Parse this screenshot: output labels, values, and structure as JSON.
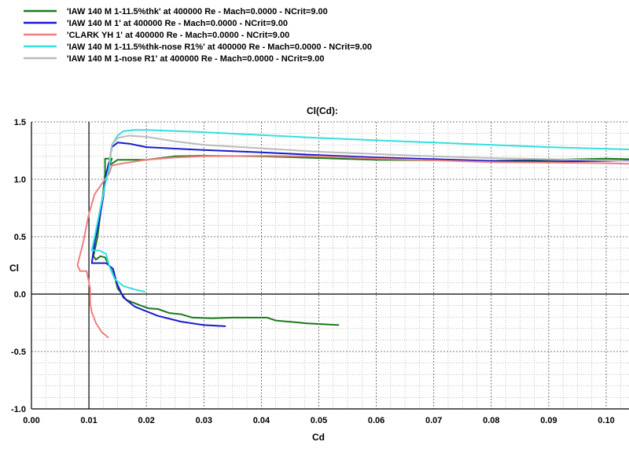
{
  "chart_data": {
    "type": "line",
    "title": "Cl(Cd):",
    "xlabel": "Cd",
    "ylabel": "Cl",
    "xlim": [
      0.0,
      0.1
    ],
    "ylim": [
      -1.0,
      1.5
    ],
    "x_ticks": [
      "0.00",
      "0.01",
      "0.02",
      "0.03",
      "0.04",
      "0.05",
      "0.06",
      "0.07",
      "0.08",
      "0.09",
      "0.10"
    ],
    "y_ticks": [
      "1.5",
      "1.0",
      "0.5",
      "0.0",
      "-0.5",
      "-1.0"
    ],
    "grid": true,
    "legend_position": "top-left",
    "series": [
      {
        "name": "'IAW 140 M 1-11.5%thk' at 400000 Re - Mach=0.0000 - NCrit=9.00",
        "color": "#1a7a1a",
        "points": [
          [
            0.0535,
            -0.27
          ],
          [
            0.048,
            -0.255
          ],
          [
            0.0425,
            -0.23
          ],
          [
            0.041,
            -0.205
          ],
          [
            0.035,
            -0.205
          ],
          [
            0.0315,
            -0.21
          ],
          [
            0.028,
            -0.205
          ],
          [
            0.026,
            -0.175
          ],
          [
            0.024,
            -0.165
          ],
          [
            0.022,
            -0.13
          ],
          [
            0.0205,
            -0.125
          ],
          [
            0.019,
            -0.1
          ],
          [
            0.0165,
            -0.05
          ],
          [
            0.015,
            0.05
          ],
          [
            0.0145,
            0.15
          ],
          [
            0.0135,
            0.25
          ],
          [
            0.0128,
            0.32
          ],
          [
            0.012,
            0.33
          ],
          [
            0.0112,
            0.3
          ],
          [
            0.0108,
            0.33
          ],
          [
            0.0115,
            0.5
          ],
          [
            0.012,
            0.7
          ],
          [
            0.0125,
            0.9
          ],
          [
            0.0128,
            1.05
          ],
          [
            0.0128,
            1.18
          ],
          [
            0.014,
            1.18
          ],
          [
            0.0135,
            1.12
          ],
          [
            0.015,
            1.17
          ],
          [
            0.02,
            1.17
          ],
          [
            0.025,
            1.2
          ],
          [
            0.03,
            1.205
          ],
          [
            0.04,
            1.2
          ],
          [
            0.05,
            1.185
          ],
          [
            0.06,
            1.17
          ],
          [
            0.07,
            1.165
          ],
          [
            0.08,
            1.16
          ],
          [
            0.09,
            1.17
          ],
          [
            0.1,
            1.18
          ],
          [
            0.104,
            1.175
          ]
        ]
      },
      {
        "name": "'IAW 140 M 1' at 400000 Re - Mach=0.0000 - NCrit=9.00",
        "color": "#1a1acc",
        "points": [
          [
            0.0338,
            -0.28
          ],
          [
            0.03,
            -0.27
          ],
          [
            0.026,
            -0.24
          ],
          [
            0.022,
            -0.19
          ],
          [
            0.018,
            -0.11
          ],
          [
            0.016,
            -0.03
          ],
          [
            0.0148,
            0.1
          ],
          [
            0.0142,
            0.22
          ],
          [
            0.013,
            0.27
          ],
          [
            0.0105,
            0.27
          ],
          [
            0.011,
            0.45
          ],
          [
            0.0118,
            0.65
          ],
          [
            0.0125,
            0.85
          ],
          [
            0.013,
            1.05
          ],
          [
            0.0135,
            1.15
          ],
          [
            0.014,
            1.28
          ],
          [
            0.015,
            1.32
          ],
          [
            0.017,
            1.31
          ],
          [
            0.02,
            1.28
          ],
          [
            0.03,
            1.255
          ],
          [
            0.04,
            1.235
          ],
          [
            0.05,
            1.21
          ],
          [
            0.06,
            1.19
          ],
          [
            0.07,
            1.175
          ],
          [
            0.08,
            1.16
          ],
          [
            0.09,
            1.155
          ],
          [
            0.1,
            1.16
          ],
          [
            0.104,
            1.165
          ]
        ]
      },
      {
        "name": "'CLARK YH 1' at 400000 Re - Mach=0.0000 - NCrit=9.00",
        "color": "#f08080",
        "points": [
          [
            0.0134,
            -0.38
          ],
          [
            0.0122,
            -0.33
          ],
          [
            0.0112,
            -0.25
          ],
          [
            0.0105,
            -0.16
          ],
          [
            0.0102,
            -0.07
          ],
          [
            0.0102,
            0.05
          ],
          [
            0.0096,
            0.2
          ],
          [
            0.0085,
            0.2
          ],
          [
            0.008,
            0.25
          ],
          [
            0.009,
            0.45
          ],
          [
            0.01,
            0.7
          ],
          [
            0.011,
            0.87
          ],
          [
            0.0125,
            0.98
          ],
          [
            0.0135,
            1.05
          ],
          [
            0.014,
            1.12
          ],
          [
            0.016,
            1.14
          ],
          [
            0.02,
            1.17
          ],
          [
            0.025,
            1.19
          ],
          [
            0.03,
            1.2
          ],
          [
            0.04,
            1.205
          ],
          [
            0.05,
            1.2
          ],
          [
            0.06,
            1.18
          ],
          [
            0.07,
            1.165
          ],
          [
            0.08,
            1.15
          ],
          [
            0.09,
            1.145
          ],
          [
            0.1,
            1.14
          ],
          [
            0.104,
            1.135
          ]
        ]
      },
      {
        "name": "'IAW 140 M 1-11.5%thk-nose R1%' at 400000 Re - Mach=0.0000 - NCrit=9.00",
        "color": "#33e0e0",
        "points": [
          [
            0.0198,
            0.02
          ],
          [
            0.018,
            0.04
          ],
          [
            0.016,
            0.07
          ],
          [
            0.0145,
            0.13
          ],
          [
            0.0135,
            0.25
          ],
          [
            0.013,
            0.35
          ],
          [
            0.0118,
            0.38
          ],
          [
            0.0105,
            0.38
          ],
          [
            0.0112,
            0.55
          ],
          [
            0.012,
            0.75
          ],
          [
            0.0128,
            0.95
          ],
          [
            0.0135,
            1.1
          ],
          [
            0.014,
            1.3
          ],
          [
            0.015,
            1.38
          ],
          [
            0.016,
            1.42
          ],
          [
            0.018,
            1.43
          ],
          [
            0.02,
            1.43
          ],
          [
            0.03,
            1.41
          ],
          [
            0.04,
            1.385
          ],
          [
            0.05,
            1.36
          ],
          [
            0.06,
            1.34
          ],
          [
            0.07,
            1.32
          ],
          [
            0.08,
            1.3
          ],
          [
            0.09,
            1.28
          ],
          [
            0.1,
            1.265
          ],
          [
            0.104,
            1.26
          ]
        ]
      },
      {
        "name": "'IAW 140 M 1-nose R1' at 400000 Re - Mach=0.0000 - NCrit=9.00",
        "color": "#bbbbbb",
        "points": [
          [
            0.0135,
            1.15
          ],
          [
            0.014,
            1.3
          ],
          [
            0.015,
            1.36
          ],
          [
            0.017,
            1.38
          ],
          [
            0.02,
            1.37
          ],
          [
            0.025,
            1.33
          ],
          [
            0.03,
            1.3
          ],
          [
            0.04,
            1.27
          ],
          [
            0.05,
            1.24
          ],
          [
            0.06,
            1.22
          ],
          [
            0.07,
            1.2
          ],
          [
            0.08,
            1.185
          ],
          [
            0.09,
            1.175
          ],
          [
            0.1,
            1.165
          ],
          [
            0.104,
            1.16
          ]
        ]
      }
    ]
  }
}
